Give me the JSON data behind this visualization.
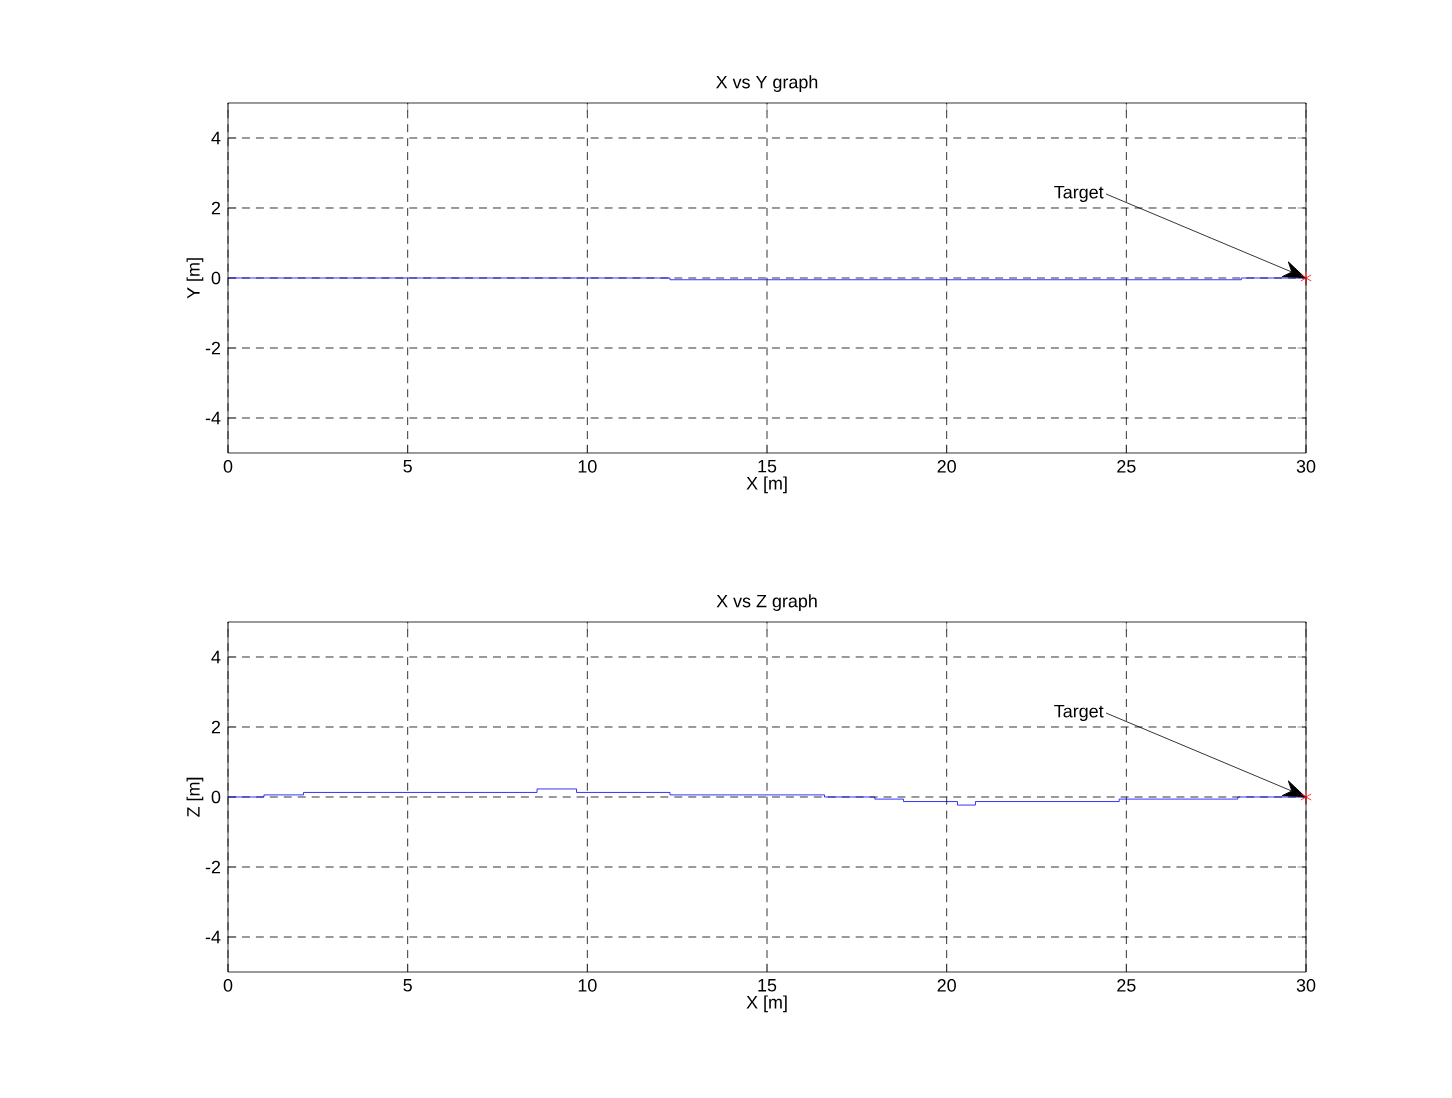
{
  "chart_data": [
    {
      "type": "line",
      "title": "X vs Y graph",
      "xlabel": "X [m]",
      "ylabel": "Y [m]",
      "xlim": [
        0,
        30
      ],
      "ylim": [
        -5,
        5
      ],
      "xticks": [
        0,
        5,
        10,
        15,
        20,
        25,
        30
      ],
      "yticks": [
        -4,
        -2,
        0,
        2,
        4
      ],
      "grid": true,
      "annotations": [
        {
          "text": "Target",
          "x": 30,
          "y": 0
        }
      ],
      "series": [
        {
          "type": "line",
          "color": "#0000ff",
          "x": [
            0,
            12.3,
            12.3,
            28.2,
            28.2,
            30
          ],
          "values": [
            0,
            0,
            -0.05,
            -0.05,
            0,
            0
          ]
        },
        {
          "type": "scatter",
          "color": "#ff0000",
          "marker": "cross",
          "x": [
            30
          ],
          "values": [
            0
          ]
        }
      ]
    },
    {
      "type": "line",
      "title": "X vs Z graph",
      "xlabel": "X [m]",
      "ylabel": "Z [m]",
      "xlim": [
        0,
        30
      ],
      "ylim": [
        -5,
        5
      ],
      "xticks": [
        0,
        5,
        10,
        15,
        20,
        25,
        30
      ],
      "yticks": [
        -4,
        -2,
        0,
        2,
        4
      ],
      "grid": true,
      "annotations": [
        {
          "text": "Target",
          "x": 30,
          "y": 0
        }
      ],
      "series": [
        {
          "type": "line",
          "color": "#0000ff",
          "x": [
            0,
            1.0,
            1.0,
            2.1,
            2.1,
            8.6,
            8.6,
            9.7,
            9.7,
            12.3,
            12.3,
            16.6,
            16.6,
            18.0,
            18.0,
            18.8,
            18.8,
            20.3,
            20.3,
            20.8,
            20.8,
            24.8,
            24.8,
            28.1,
            28.1,
            30
          ],
          "values": [
            0,
            0,
            0.06,
            0.06,
            0.13,
            0.13,
            0.23,
            0.23,
            0.13,
            0.13,
            0.06,
            0.06,
            0.0,
            0.0,
            -0.06,
            -0.06,
            -0.13,
            -0.13,
            -0.23,
            -0.23,
            -0.13,
            -0.13,
            -0.06,
            -0.06,
            0,
            0
          ]
        },
        {
          "type": "scatter",
          "color": "#ff0000",
          "marker": "cross",
          "x": [
            30
          ],
          "values": [
            0
          ]
        }
      ]
    }
  ]
}
